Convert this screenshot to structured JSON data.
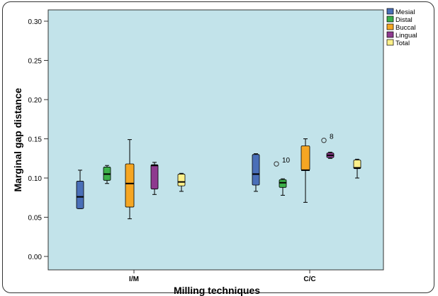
{
  "chart_data": {
    "type": "boxplot",
    "xlabel": "Milling techniques",
    "ylabel": "Marginal gap distance",
    "ylim": [
      0.0,
      0.3
    ],
    "yticks": [
      "0.00",
      "0.05",
      "0.10",
      "0.15",
      "0.20",
      "0.25",
      "0.30"
    ],
    "grid": false,
    "legend_position": "top-right, outside plot",
    "plot_background": "#c2e3ea",
    "categories": [
      "I/M",
      "C/C"
    ],
    "series": [
      {
        "name": "Mesial",
        "color": "#4a6fb8",
        "boxes": [
          {
            "min": 0.061,
            "q1": 0.061,
            "median": 0.076,
            "q3": 0.096,
            "max": 0.11
          },
          {
            "min": 0.083,
            "q1": 0.091,
            "median": 0.105,
            "q3": 0.13,
            "max": 0.131
          }
        ]
      },
      {
        "name": "Distal",
        "color": "#3cb04a",
        "boxes": [
          {
            "min": 0.093,
            "q1": 0.097,
            "median": 0.105,
            "q3": 0.114,
            "max": 0.116
          },
          {
            "min": 0.078,
            "q1": 0.088,
            "median": 0.094,
            "q3": 0.098,
            "max": 0.099,
            "outliers": [
              {
                "value": 0.118,
                "label": "10"
              }
            ]
          }
        ]
      },
      {
        "name": "Buccal",
        "color": "#f5a623",
        "boxes": [
          {
            "min": 0.048,
            "q1": 0.063,
            "median": 0.093,
            "q3": 0.118,
            "max": 0.149
          },
          {
            "min": 0.069,
            "q1": 0.11,
            "median": 0.11,
            "q3": 0.141,
            "max": 0.15
          }
        ]
      },
      {
        "name": "Lingual",
        "color": "#8e3a8f",
        "boxes": [
          {
            "min": 0.079,
            "q1": 0.086,
            "median": 0.116,
            "q3": 0.117,
            "max": 0.12
          },
          {
            "min": 0.125,
            "q1": 0.126,
            "median": 0.129,
            "q3": 0.132,
            "max": 0.133,
            "outliers": [
              {
                "value": 0.148,
                "label": "8"
              }
            ]
          }
        ]
      },
      {
        "name": "Total",
        "color": "#fdf08a",
        "boxes": [
          {
            "min": 0.083,
            "q1": 0.09,
            "median": 0.095,
            "q3": 0.105,
            "max": 0.106
          },
          {
            "min": 0.1,
            "q1": 0.112,
            "median": 0.113,
            "q3": 0.123,
            "max": 0.124
          }
        ]
      }
    ]
  }
}
